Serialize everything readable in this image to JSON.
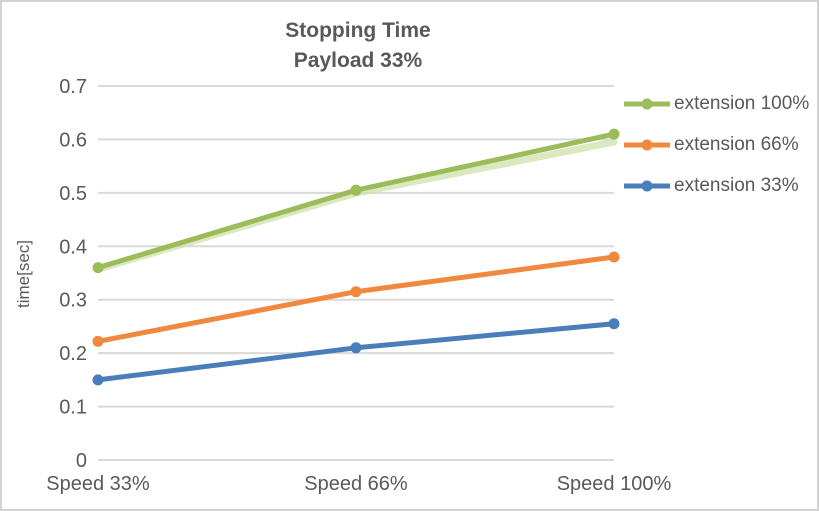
{
  "window": {
    "background": "#ffffff",
    "border_color": "#d2d2d2"
  },
  "chart_data": {
    "type": "line",
    "title": "Stopping Time",
    "subtitle": "Payload 33%",
    "ylabel": "time[sec]",
    "xlabel": "",
    "categories": [
      "Speed 33%",
      "Speed 66%",
      "Speed 100%"
    ],
    "series": [
      {
        "name": "extension 100%",
        "color": "#9CBB59",
        "values": [
          0.36,
          0.505,
          0.61
        ],
        "shadow": true
      },
      {
        "name": "extension 66%",
        "color": "#F0883E",
        "values": [
          0.222,
          0.315,
          0.38
        ],
        "shadow": false
      },
      {
        "name": "extension 33%",
        "color": "#4A7EBB",
        "values": [
          0.15,
          0.21,
          0.255
        ],
        "shadow": false
      }
    ],
    "ylim": [
      0,
      0.7
    ],
    "ytick_step": 0.1,
    "yticks": [
      "0",
      "0.1",
      "0.2",
      "0.3",
      "0.4",
      "0.5",
      "0.6",
      "0.7"
    ],
    "grid": true,
    "legend_position": "right",
    "text_color": "#595959",
    "grid_color": "#D9D9D9",
    "shadow_color": "#CFE0AB"
  }
}
